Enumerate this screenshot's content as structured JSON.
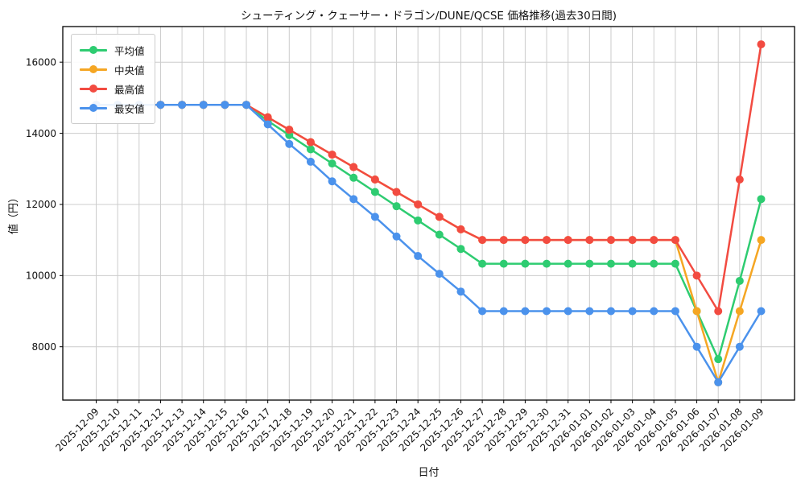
{
  "chart_data": {
    "type": "line",
    "title": "シューティング・クェーサー・ドラゴン/DUNE/QCSE 価格推移(過去30日間)",
    "xlabel": "日付",
    "ylabel": "値（円）",
    "grid": true,
    "legend_position": "upper-left",
    "ylim": [
      6500,
      17000
    ],
    "yticks": [
      8000,
      10000,
      12000,
      14000,
      16000
    ],
    "x": [
      "2025-12-09",
      "2025-12-10",
      "2025-12-11",
      "2025-12-12",
      "2025-12-13",
      "2025-12-14",
      "2025-12-15",
      "2025-12-16",
      "2025-12-17",
      "2025-12-18",
      "2025-12-19",
      "2025-12-20",
      "2025-12-21",
      "2025-12-22",
      "2025-12-23",
      "2025-12-24",
      "2025-12-25",
      "2025-12-26",
      "2025-12-27",
      "2025-12-28",
      "2025-12-29",
      "2025-12-30",
      "2025-12-31",
      "2026-01-01",
      "2026-01-02",
      "2026-01-03",
      "2026-01-04",
      "2026-01-05",
      "2026-01-06",
      "2026-01-07",
      "2026-01-08",
      "2026-01-09"
    ],
    "series": [
      {
        "key": "avg",
        "name": "平均値",
        "color": "#2ecc71",
        "values": [
          14800,
          14800,
          14800,
          14800,
          14800,
          14800,
          14800,
          14800,
          14350,
          13950,
          13550,
          13150,
          12750,
          12350,
          11950,
          11550,
          11150,
          10750,
          10333,
          10333,
          10333,
          10333,
          10333,
          10333,
          10333,
          10333,
          10333,
          10333,
          9000,
          7650,
          9850,
          12150
        ]
      },
      {
        "key": "median",
        "name": "中央値",
        "color": "#f5a623",
        "values": [
          14800,
          14800,
          14800,
          14800,
          14800,
          14800,
          14800,
          14800,
          14450,
          14100,
          13750,
          13400,
          13050,
          12700,
          12350,
          12000,
          11650,
          11300,
          11000,
          11000,
          11000,
          11000,
          11000,
          11000,
          11000,
          11000,
          11000,
          11000,
          9000,
          7000,
          9000,
          11000
        ]
      },
      {
        "key": "max",
        "name": "最高値",
        "color": "#f24b41",
        "values": [
          14800,
          14800,
          14800,
          14800,
          14800,
          14800,
          14800,
          14800,
          14450,
          14100,
          13750,
          13400,
          13050,
          12700,
          12350,
          12000,
          11650,
          11300,
          11000,
          11000,
          11000,
          11000,
          11000,
          11000,
          11000,
          11000,
          11000,
          11000,
          10000,
          9000,
          12700,
          16500
        ]
      },
      {
        "key": "min",
        "name": "最安値",
        "color": "#4b92ec",
        "values": [
          14800,
          14800,
          14800,
          14800,
          14800,
          14800,
          14800,
          14800,
          14250,
          13700,
          13200,
          12650,
          12150,
          11650,
          11100,
          10550,
          10050,
          9550,
          9000,
          9000,
          9000,
          9000,
          9000,
          9000,
          9000,
          9000,
          9000,
          9000,
          8000,
          7000,
          8000,
          9000
        ]
      }
    ]
  }
}
